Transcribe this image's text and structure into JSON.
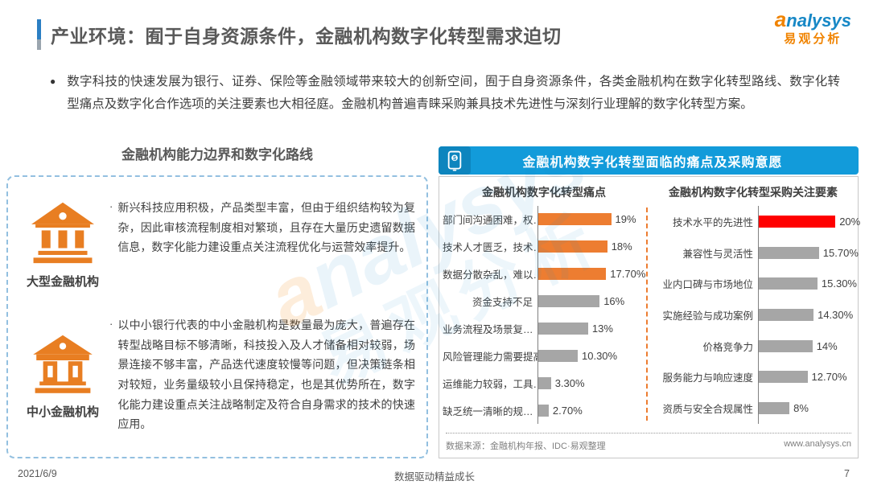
{
  "page": {
    "title": "产业环境：囿于自身资源条件，金融机构数字化转型需求迫切",
    "intro": "数字科技的快速发展为银行、证券、保险等金融领域带来较大的创新空间，囿于自身资源条件，各类金融机构在数字化转型路线、数字化转型痛点及数字化合作选项的关注要素也大相径庭。金融机构普遍青睐采购兼具技术先进性与深刻行业理解的数字化转型方案。",
    "bullet_glyph": "●",
    "item_bullet_glyph": "·"
  },
  "logo": {
    "en": "nalysys",
    "swirl": "a",
    "cn": "易观分析"
  },
  "watermark": {
    "line1_swirl": "a",
    "line1": "nalysys",
    "line2": "易观分析"
  },
  "left_section": {
    "header": "金融机构能力边界和数字化路线",
    "items": [
      {
        "label": "大型金融机构",
        "icon": "bank-large-icon",
        "text": "新兴科技应用积极，产品类型丰富，但由于组织结构较为复杂，因此审核流程制度相对繁琐，且存在大量历史遗留数据信息，数字化能力建设重点关注流程优化与运营效率提升。"
      },
      {
        "label": "中小金融机构",
        "icon": "bank-small-icon",
        "text": "以中小银行代表的中小金融机构是数量最为庞大，普遍存在转型战略目标不够清晰，科技投入及人才储备相对较弱，场景连接不够丰富，产品迭代速度较慢等问题，但决策链条相对较短，业务量级较小且保持稳定，也是其优势所在，数字化能力建设重点关注战略制定及符合自身需求的技术的快速应用。"
      }
    ]
  },
  "right_section": {
    "header": "金融机构数字化转型面临的痛点及采购意愿",
    "header_icon": "mobile-payment-icon",
    "source": "数据来源：金融机构年报、IDC·易观整理",
    "website": "www.analysys.cn"
  },
  "chart_data": [
    {
      "type": "bar",
      "orientation": "horizontal",
      "title": "金融机构数字化转型痛点",
      "categories": [
        "部门间沟通困难，权…",
        "技术人才匮乏，技术…",
        "数据分散杂乱，难以…",
        "资金支持不足",
        "业务流程及场景复…",
        "风险管理能力需要提高",
        "运维能力较弱，工具…",
        "缺乏统一清晰的规…"
      ],
      "values": [
        19,
        18,
        17.7,
        16,
        13,
        10.3,
        3.3,
        2.7
      ],
      "value_labels": [
        "19%",
        "18%",
        "17.70%",
        "16%",
        "13%",
        "10.30%",
        "3.30%",
        "2.70%"
      ],
      "bar_colors": [
        "#ED7D31",
        "#ED7D31",
        "#ED7D31",
        "#A6A6A6",
        "#A6A6A6",
        "#A6A6A6",
        "#A6A6A6",
        "#A6A6A6"
      ],
      "xlim": [
        0,
        21
      ],
      "legend": "none",
      "grid": "off"
    },
    {
      "type": "bar",
      "orientation": "horizontal",
      "title": "金融机构数字化转型采购关注要素",
      "categories": [
        "技术水平的先进性",
        "兼容性与灵活性",
        "业内口碑与市场地位",
        "实施经验与成功案例",
        "价格竞争力",
        "服务能力与响应速度",
        "资质与安全合规属性"
      ],
      "values": [
        20,
        15.7,
        15.3,
        14.3,
        14,
        12.7,
        8
      ],
      "value_labels": [
        "20%",
        "15.70%",
        "15.30%",
        "14.30%",
        "14%",
        "12.70%",
        "8%"
      ],
      "bar_colors": [
        "#FF0000",
        "#A6A6A6",
        "#A6A6A6",
        "#A6A6A6",
        "#A6A6A6",
        "#A6A6A6",
        "#A6A6A6"
      ],
      "xlim": [
        0,
        21
      ],
      "legend": "none",
      "grid": "off"
    }
  ],
  "footer": {
    "date": "2021/6/9",
    "center": "数据驱动精益成长",
    "page": "7"
  },
  "colors": {
    "header_blue": "#129BDA",
    "accent_blue": "#2B7FC3",
    "orange": "#ED7D31",
    "gray_bar": "#A6A6A6",
    "red": "#FF0000",
    "icon_orange": "#E87E22"
  }
}
